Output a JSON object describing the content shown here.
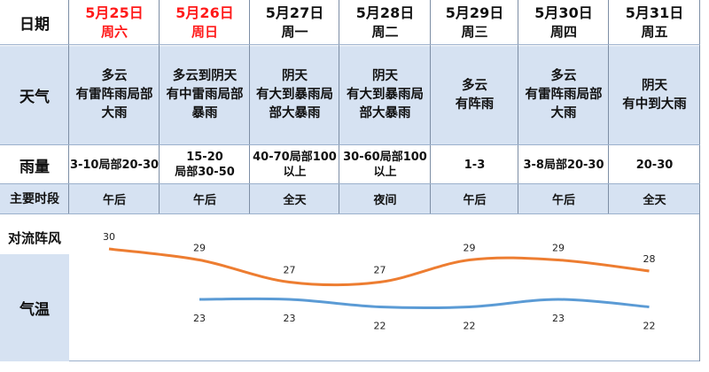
{
  "header_label": "日期",
  "days": [
    {
      "date": "5月25日",
      "weekday": "周六",
      "weekend": true,
      "weather": [
        "多云",
        "有雷阵雨局部",
        "大雨"
      ],
      "rain": [
        "3-10局部20-30"
      ],
      "period": "午后"
    },
    {
      "date": "5月26日",
      "weekday": "周日",
      "weekend": true,
      "weather": [
        "多云到阴天",
        "有中雷雨局部",
        "暴雨"
      ],
      "rain": [
        "15-20",
        "局部30-50"
      ],
      "period": "午后"
    },
    {
      "date": "5月27日",
      "weekday": "周一",
      "weekend": false,
      "weather": [
        "阴天",
        "有大到暴雨局",
        "部大暴雨"
      ],
      "rain": [
        "40-70局部100",
        "以上"
      ],
      "period": "全天"
    },
    {
      "date": "5月28日",
      "weekday": "周二",
      "weekend": false,
      "weather": [
        "阴天",
        "有大到暴雨局",
        "部大暴雨"
      ],
      "rain": [
        "30-60局部100",
        "以上"
      ],
      "period": "夜间"
    },
    {
      "date": "5月29日",
      "weekday": "周三",
      "weekend": false,
      "weather": [
        "多云",
        "有阵雨"
      ],
      "rain": [
        "1-3"
      ],
      "period": "午后"
    },
    {
      "date": "5月30日",
      "weekday": "周四",
      "weekend": false,
      "weather": [
        "多云",
        "有雷阵雨局部",
        "大雨"
      ],
      "rain": [
        "3-8局部20-30"
      ],
      "period": "午后"
    },
    {
      "date": "5月31日",
      "weekday": "周五",
      "weekend": false,
      "weather": [
        "阴天",
        "有中到大雨"
      ],
      "rain": [
        "20-30"
      ],
      "period": "全天"
    }
  ],
  "row_labels": {
    "weather": "天气",
    "rain": "雨量",
    "period": "主要时段",
    "wind": "对流阵风",
    "temp": "气温"
  },
  "colors": {
    "weekend_red": "#ff1a1a",
    "row_blue": "#d6e2f2",
    "high_line": "#ed7d31",
    "low_line": "#5b9bd5"
  },
  "chart_data": {
    "type": "line",
    "x": [
      "5月25日",
      "5月26日",
      "5月27日",
      "5月28日",
      "5月29日",
      "5月30日",
      "5月31日"
    ],
    "series": [
      {
        "values": [
          30,
          29,
          27,
          27,
          29,
          29,
          28
        ]
      },
      {
        "values": [
          null,
          23,
          23,
          22,
          22,
          23,
          22
        ]
      }
    ],
    "title": "",
    "xlabel": "",
    "ylabel": "",
    "ylim": [
      20,
      32
    ]
  }
}
